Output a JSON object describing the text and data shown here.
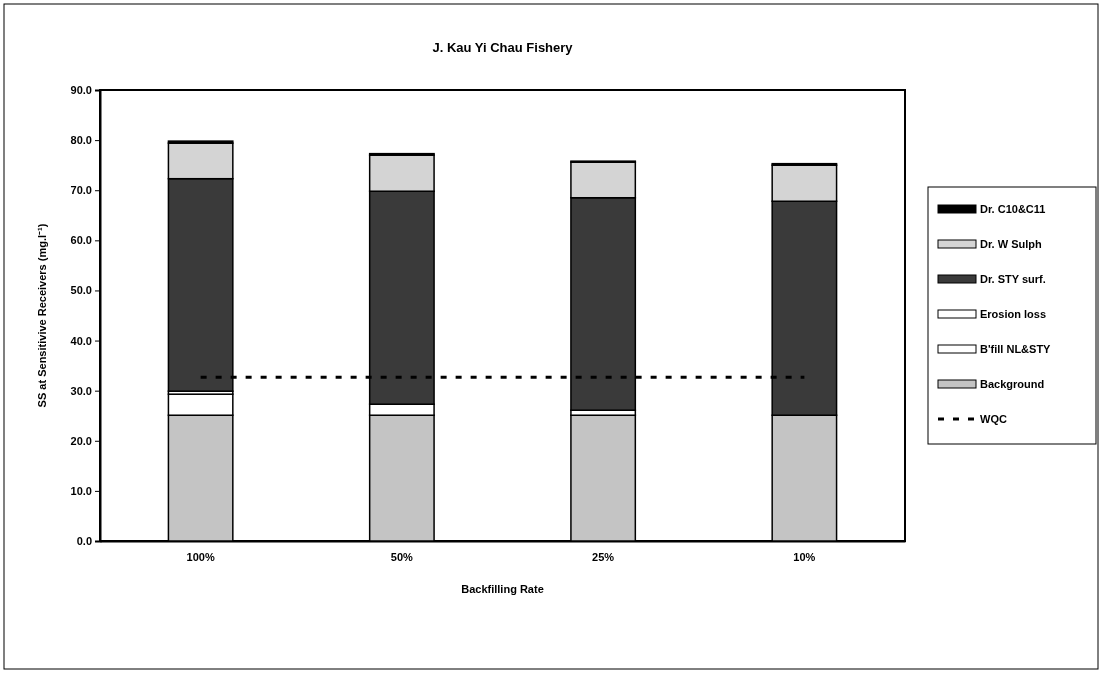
{
  "chart_data": {
    "type": "bar",
    "stacked": true,
    "title": "J. Kau Yi Chau Fishery",
    "xlabel": "Backfilling Rate",
    "ylabel": "SS at Sensitivive Receivers (mg.l⁻¹)",
    "categories": [
      "100%",
      "50%",
      "25%",
      "10%"
    ],
    "series": [
      {
        "name": "Background",
        "color": "#c4c4c4",
        "values": [
          25.1,
          25.1,
          25.1,
          25.1
        ]
      },
      {
        "name": "B'fill NL&STY",
        "color": "#ffffff",
        "values": [
          4.2,
          2.2,
          1.0,
          0
        ]
      },
      {
        "name": "Erosion loss",
        "color": "#ffffff",
        "values": [
          0.6,
          null,
          null,
          0
        ]
      },
      {
        "name": "Dr. STY surf.",
        "color": "#3a3a3a",
        "values": [
          42.4,
          42.5,
          42.4,
          42.7
        ]
      },
      {
        "name": "Dr. W Sulph",
        "color": "#d4d4d4",
        "values": [
          7.1,
          7.2,
          7.1,
          7.2
        ]
      },
      {
        "name": "Dr. C10&C11",
        "color": "#000000",
        "values": [
          0.4,
          0.3,
          0.2,
          0.3
        ]
      },
      {
        "name": "WQC",
        "type": "line",
        "color": "#000000",
        "line_style": "dashed",
        "marker": "none",
        "values": [
          32.7,
          32.7,
          32.7,
          32.7
        ]
      }
    ],
    "ylim": [
      0,
      90
    ],
    "yticks": [
      {
        "value": 0,
        "label": "0.0"
      },
      {
        "value": 10,
        "label": "10.0"
      },
      {
        "value": 20,
        "label": "20.0"
      },
      {
        "value": 30,
        "label": "30.0"
      },
      {
        "value": 40,
        "label": "40.0"
      },
      {
        "value": 50,
        "label": "50.0"
      },
      {
        "value": 60,
        "label": "60.0"
      },
      {
        "value": 70,
        "label": "70.0"
      },
      {
        "value": 80,
        "label": "80.0"
      },
      {
        "value": 90,
        "label": "90.0"
      }
    ],
    "grid": false,
    "legend": "right"
  }
}
